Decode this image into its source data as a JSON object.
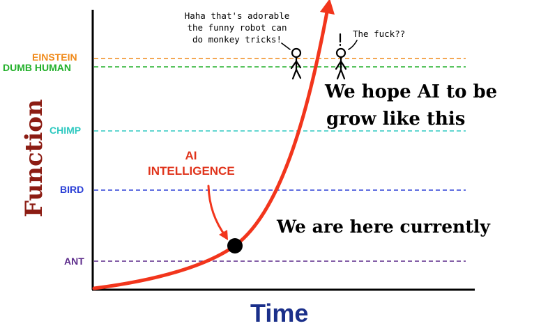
{
  "levels": [
    {
      "label": "EINSTEIN",
      "color": "#f08a1a"
    },
    {
      "label": "DUMB HUMAN",
      "color": "#22b02a"
    },
    {
      "label": "CHIMP",
      "color": "#2fc9c0"
    },
    {
      "label": "BIRD",
      "color": "#2a3fd6"
    },
    {
      "label": "ANT",
      "color": "#5b2a8a"
    }
  ],
  "axes": {
    "x_label": "Time",
    "y_label": "Function"
  },
  "curve": {
    "label_line1": "AI",
    "label_line2": "INTELLIGENCE",
    "color": "#f2351c"
  },
  "annotations": {
    "hope": {
      "line1": "We hope AI to be",
      "line2": "grow like this"
    },
    "here": "We are here currently"
  },
  "speech": {
    "einstein": {
      "line1": "Haha that's adorable",
      "line2": "the funny robot can",
      "line3": "do monkey tricks!"
    },
    "human": "The fuck??"
  }
}
